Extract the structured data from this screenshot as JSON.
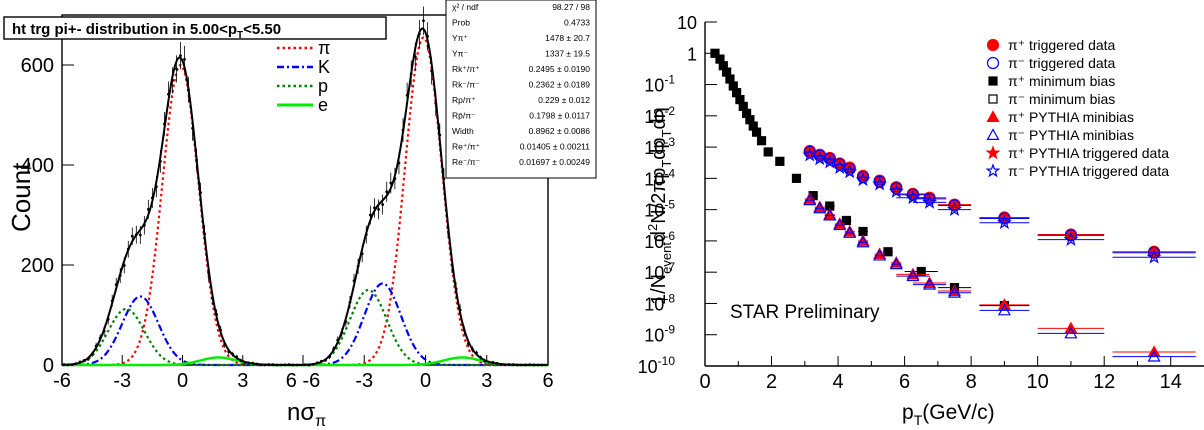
{
  "chart_data": [
    {
      "type": "line",
      "title": "ht trg pi+- distribution in 5.00<p_T<5.50",
      "title_parts": {
        "main": "ht trg pi+- distribution in 5.00<p",
        "sub": "T",
        "tail": "<5.50"
      },
      "xlabel": "nσ",
      "xlabel_sub": "π",
      "ylabel": "Count",
      "xlim_panel_1": [
        -6,
        6
      ],
      "xlim_panel_2": [
        -6,
        6
      ],
      "ylim": [
        0,
        700
      ],
      "x_ticks": [
        "-6",
        "-3",
        "0",
        "3",
        "6 -6",
        "-3",
        "0",
        "3",
        "6"
      ],
      "y_ticks": [
        "0",
        "200",
        "400",
        "600"
      ],
      "legend_position": "top-center",
      "legend": [
        {
          "label": "π",
          "color": "#ff0000",
          "style": "dotted"
        },
        {
          "label": "K",
          "color": "#0000ff",
          "style": "dash-dot"
        },
        {
          "label": "p",
          "color": "#008000",
          "style": "dotted"
        },
        {
          "label": "e",
          "color": "#00ee00",
          "style": "solid"
        }
      ],
      "stats_box": [
        {
          "label": "χ² / ndf",
          "value": "98.27 / 98"
        },
        {
          "label": "Prob",
          "value": "0.4733"
        },
        {
          "label": "Yπ⁺",
          "value": "1478 ± 20.7"
        },
        {
          "label": "Yπ⁻",
          "value": "1337 ± 19.5"
        },
        {
          "label": "Rk⁺/π⁺",
          "value": "0.2495 ± 0.0190"
        },
        {
          "label": "Rk⁻/π⁻",
          "value": "0.2362 ± 0.0189"
        },
        {
          "label": "Rp/π⁺",
          "value": "0.229 ± 0.012"
        },
        {
          "label": "Rp̄/π⁻",
          "value": "0.1798 ± 0.0117"
        },
        {
          "label": "Width",
          "value": "0.8962 ± 0.0086"
        },
        {
          "label": "Re⁺/π⁺",
          "value": "0.01405 ± 0.00211"
        },
        {
          "label": "Re⁻/π⁻",
          "value": "0.01697 ± 0.00249"
        }
      ],
      "series": [
        {
          "name": "π",
          "panel": 1,
          "peak_x": -0.1,
          "peak_y": 600,
          "width": 0.9
        },
        {
          "name": "K",
          "panel": 1,
          "peak_x": -2.1,
          "peak_y": 137,
          "width": 0.9
        },
        {
          "name": "p",
          "panel": 1,
          "peak_x": -2.8,
          "peak_y": 112,
          "width": 0.9
        },
        {
          "name": "e",
          "panel": 1,
          "peak_x": 1.8,
          "peak_y": 15,
          "width": 0.9
        },
        {
          "name": "π",
          "panel": 2,
          "peak_x": -0.1,
          "peak_y": 655,
          "width": 0.9
        },
        {
          "name": "K",
          "panel": 2,
          "peak_x": -2.1,
          "peak_y": 163,
          "width": 0.9
        },
        {
          "name": "p",
          "panel": 2,
          "peak_x": -2.8,
          "peak_y": 150,
          "width": 0.9
        },
        {
          "name": "e",
          "panel": 2,
          "peak_x": 1.8,
          "peak_y": 15,
          "width": 0.9
        }
      ]
    },
    {
      "type": "scatter",
      "xlabel": "p_T(GeV/c)",
      "xlabel_parts": {
        "main": "p",
        "sub": "T",
        "tail": "(GeV/c)"
      },
      "ylabel": "1/N_event d²N/2πp_T dp_T dη",
      "ylabel_parts": [
        "1/N",
        "event",
        "d",
        "2",
        "N/2πp",
        "T",
        "dp",
        "T",
        "dη"
      ],
      "annotation": "STAR Preliminary",
      "xlim": [
        0,
        15
      ],
      "ylim": [
        1e-10,
        10
      ],
      "y_scale": "log",
      "x_ticks": [
        "0",
        "2",
        "4",
        "6",
        "8",
        "10",
        "12",
        "14"
      ],
      "y_ticks": [
        {
          "base": "10",
          "exp": "-10"
        },
        {
          "base": "10",
          "exp": "-9"
        },
        {
          "base": "10",
          "exp": "-8"
        },
        {
          "base": "10",
          "exp": "-7"
        },
        {
          "base": "10",
          "exp": "-6"
        },
        {
          "base": "10",
          "exp": "-5"
        },
        {
          "base": "10",
          "exp": "-4"
        },
        {
          "base": "10",
          "exp": "-3"
        },
        {
          "base": "10",
          "exp": "-2"
        },
        {
          "base": "10",
          "exp": "-1"
        },
        {
          "base": "1",
          "exp": ""
        },
        {
          "base": "10",
          "exp": ""
        }
      ],
      "legend_position": "top-right",
      "legend": [
        {
          "label": "π⁺ triggered data",
          "marker": "circle-filled",
          "color": "#ff0000"
        },
        {
          "label": "π⁻ triggered data",
          "marker": "circle-open",
          "color": "#0000ff"
        },
        {
          "label": "π⁺ minimum bias",
          "marker": "square-filled",
          "color": "#000000"
        },
        {
          "label": "π⁻ minimum bias",
          "marker": "square-open",
          "color": "#000000"
        },
        {
          "label": "π⁺ PYTHIA minibias",
          "marker": "triangle-filled",
          "color": "#ff0000"
        },
        {
          "label": "π⁻ PYTHIA minibias",
          "marker": "triangle-open",
          "color": "#0000ff"
        },
        {
          "label": "π⁺ PYTHIA triggered data",
          "marker": "star-filled",
          "color": "#ff0000"
        },
        {
          "label": "π⁻ PYTHIA triggered data",
          "marker": "star-open",
          "color": "#0000ff"
        }
      ],
      "series": [
        {
          "name": "π⁺ minimum bias",
          "marker": "square-filled",
          "color": "#000000",
          "x": [
            0.3,
            0.45,
            0.55,
            0.65,
            0.75,
            0.85,
            0.95,
            1.05,
            1.15,
            1.25,
            1.35,
            1.45,
            1.55,
            1.7,
            1.9
          ],
          "y": [
            1.0,
            0.65,
            0.4,
            0.25,
            0.15,
            0.09,
            0.055,
            0.033,
            0.02,
            0.012,
            0.0075,
            0.0047,
            0.003,
            0.0016,
            0.0007
          ]
        },
        {
          "name": "π⁺ minimum bias",
          "marker": "square-filled",
          "color": "#000000",
          "x": [
            2.25,
            2.75,
            3.25,
            3.75,
            4.25,
            4.75,
            5.5,
            6.5,
            7.5,
            9.0,
            11.0,
            13.5
          ],
          "y": [
            0.00035,
            0.0001,
            2.8e-05,
            1.3e-05,
            4.5e-06,
            2e-06,
            4.5e-07,
            1.05e-07,
            3.2e-08,
            8.5e-09,
            null,
            null
          ]
        },
        {
          "name": "π⁺ triggered data",
          "marker": "circle-filled",
          "color": "#ff0000",
          "x": [
            3.15,
            3.45,
            3.75,
            4.05,
            4.35,
            4.75,
            5.25,
            5.75,
            6.25,
            6.75,
            7.5,
            9.0,
            11.0,
            13.5
          ],
          "y": [
            0.00075,
            0.00057,
            0.00045,
            0.0003,
            0.00022,
            0.00012,
            8.5e-05,
            5.2e-05,
            3.2e-05,
            2.4e-05,
            1.45e-05,
            5.6e-06,
            1.6e-06,
            4.5e-07
          ]
        },
        {
          "name": "π⁻ triggered data",
          "marker": "circle-open",
          "color": "#0000ff",
          "x": [
            3.15,
            3.45,
            3.75,
            4.05,
            4.35,
            4.75,
            5.25,
            5.75,
            6.25,
            6.75,
            7.5,
            9.0,
            11.0,
            13.5
          ],
          "y": [
            0.0007,
            0.00053,
            0.00042,
            0.00028,
            0.0002,
            0.00011,
            7.8e-05,
            4.8e-05,
            3e-05,
            2.2e-05,
            1.35e-05,
            5.2e-06,
            1.5e-06,
            4.2e-07
          ]
        },
        {
          "name": "π⁺ PYTHIA minibias",
          "marker": "triangle-filled",
          "color": "#ff0000",
          "x": [
            3.15,
            3.45,
            3.75,
            4.05,
            4.35,
            4.75,
            5.25,
            5.75,
            6.25,
            6.75,
            7.5,
            9.0,
            11.0,
            13.5
          ],
          "y": [
            2.2e-05,
            1.2e-05,
            7e-06,
            3.5e-06,
            2e-06,
            1e-06,
            3.8e-07,
            2e-07,
            8.5e-08,
            4.5e-08,
            2.5e-08,
            9e-09,
            1.6e-09,
            2.8e-10
          ]
        },
        {
          "name": "π⁻ PYTHIA minibias",
          "marker": "triangle-open",
          "color": "#0000ff",
          "x": [
            3.15,
            3.45,
            3.75,
            4.05,
            4.35,
            4.75,
            5.25,
            5.75,
            6.25,
            6.75,
            7.5,
            9.0,
            11.0,
            13.5
          ],
          "y": [
            2e-05,
            1.1e-05,
            6.5e-06,
            3.2e-06,
            1.8e-06,
            9e-07,
            3.4e-07,
            1.8e-07,
            7.5e-08,
            4e-08,
            2.2e-08,
            6e-09,
            1.1e-09,
            2e-10
          ]
        },
        {
          "name": "π⁻ PYTHIA triggered data",
          "marker": "star-open",
          "color": "#0000ff",
          "x": [
            3.15,
            3.45,
            3.75,
            4.05,
            4.35,
            4.75,
            5.25,
            5.75,
            6.25,
            6.75,
            7.5,
            9.0,
            11.0,
            13.5
          ],
          "y": [
            0.00055,
            0.00042,
            0.00033,
            0.00022,
            0.00016,
            9e-05,
            6.5e-05,
            3.8e-05,
            2.4e-05,
            1.7e-05,
            1e-05,
            3.8e-06,
            1.1e-06,
            3e-07
          ]
        }
      ]
    }
  ]
}
